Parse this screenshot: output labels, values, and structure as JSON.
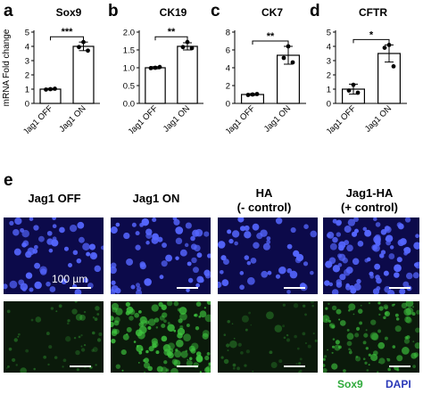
{
  "panels": {
    "a": "a",
    "b": "b",
    "c": "c",
    "d": "d",
    "e": "e"
  },
  "chart_data": [
    {
      "type": "bar",
      "title": "Sox9",
      "ylabel": "mRNA Fold change",
      "categories": [
        "Jag1 OFF",
        "Jag1 ON"
      ],
      "values": [
        1.0,
        4.0
      ],
      "errors": [
        0.05,
        0.3
      ],
      "points": [
        [
          1.0,
          0.97,
          1.03
        ],
        [
          4.3,
          3.95,
          3.7
        ]
      ],
      "ylim": [
        0,
        5
      ],
      "yticks": [
        0,
        1,
        2,
        3,
        4,
        5
      ],
      "significance": "***"
    },
    {
      "type": "bar",
      "title": "CK19",
      "categories": [
        "Jag1 OFF",
        "Jag1 ON"
      ],
      "values": [
        1.0,
        1.6
      ],
      "errors": [
        0.03,
        0.1
      ],
      "points": [
        [
          1.0,
          0.99,
          1.02
        ],
        [
          1.72,
          1.58,
          1.55
        ]
      ],
      "ylim": [
        0,
        2.0
      ],
      "yticks": [
        0.0,
        0.5,
        1.0,
        1.5,
        2.0
      ],
      "significance": "**"
    },
    {
      "type": "bar",
      "title": "CK7",
      "categories": [
        "Jag1 OFF",
        "Jag1 ON"
      ],
      "values": [
        1.0,
        5.4
      ],
      "errors": [
        0.1,
        1.0
      ],
      "points": [
        [
          1.0,
          0.95,
          1.05
        ],
        [
          6.4,
          5.1,
          4.6
        ]
      ],
      "ylim": [
        0,
        8
      ],
      "yticks": [
        0,
        2,
        4,
        6,
        8
      ],
      "significance": "**"
    },
    {
      "type": "bar",
      "title": "CFTR",
      "categories": [
        "Jag1 OFF",
        "Jag1 ON"
      ],
      "values": [
        1.0,
        3.5
      ],
      "errors": [
        0.35,
        0.6
      ],
      "points": [
        [
          1.3,
          0.9,
          0.75
        ],
        [
          4.1,
          3.9,
          2.6
        ]
      ],
      "ylim": [
        0,
        5
      ],
      "yticks": [
        0,
        1,
        2,
        3,
        4,
        5
      ],
      "significance": "*"
    }
  ],
  "micrographs": {
    "columns": [
      {
        "title": "Jag1 OFF"
      },
      {
        "title": "Jag1 ON"
      },
      {
        "title": "HA\n(- control)"
      },
      {
        "title": "Jag1-HA\n(+ control)"
      }
    ],
    "scale_label": "100 µm",
    "legend": {
      "sox9": "Sox9",
      "dapi": "DAPI"
    },
    "colors": {
      "dapi_bg": "#0c0a4a",
      "dapi_nuc": "#5566ff",
      "sox9_bg": "#0b1a0b",
      "sox9_cell": "#3ec63e",
      "sox9_text": "#2eaa3a",
      "dapi_text": "#2a38b8"
    },
    "sox9_density": [
      0.25,
      1.0,
      0.2,
      0.8
    ]
  }
}
